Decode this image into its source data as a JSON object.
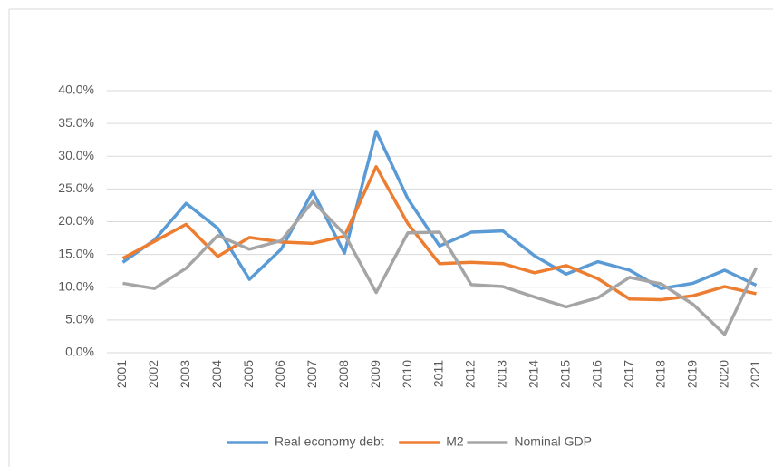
{
  "chart_data": {
    "type": "line",
    "categories": [
      "2001",
      "2002",
      "2003",
      "2004",
      "2005",
      "2006",
      "2007",
      "2008",
      "2009",
      "2010",
      "2011",
      "2012",
      "2013",
      "2014",
      "2015",
      "2016",
      "2017",
      "2018",
      "2019",
      "2020",
      "2021"
    ],
    "series": [
      {
        "name": "Real economy debt",
        "color": "#5b9bd5",
        "values": [
          13.8,
          17.2,
          22.8,
          19.0,
          11.2,
          15.8,
          24.6,
          15.2,
          33.8,
          23.5,
          16.3,
          18.4,
          18.6,
          14.8,
          12.0,
          13.9,
          12.6,
          9.8,
          10.6,
          12.6,
          10.3
        ]
      },
      {
        "name": "M2",
        "color": "#ed7d31",
        "values": [
          14.4,
          17.0,
          19.6,
          14.7,
          17.6,
          16.9,
          16.7,
          17.8,
          28.4,
          19.7,
          13.6,
          13.8,
          13.6,
          12.2,
          13.3,
          11.3,
          8.2,
          8.1,
          8.7,
          10.1,
          9.0
        ]
      },
      {
        "name": "Nominal GDP",
        "color": "#a5a5a5",
        "values": [
          10.6,
          9.8,
          12.9,
          17.9,
          15.8,
          17.1,
          23.1,
          18.1,
          9.2,
          18.3,
          18.4,
          10.4,
          10.1,
          8.5,
          7.0,
          8.4,
          11.5,
          10.5,
          7.4,
          2.8,
          13.0
        ]
      }
    ],
    "ylim": [
      0,
      40
    ],
    "yticks": [
      {
        "value": 0,
        "label": "0.0%"
      },
      {
        "value": 5,
        "label": "5.0%"
      },
      {
        "value": 10,
        "label": "10.0%"
      },
      {
        "value": 15,
        "label": "15.0%"
      },
      {
        "value": 20,
        "label": "20.0%"
      },
      {
        "value": 25,
        "label": "25.0%"
      },
      {
        "value": 30,
        "label": "30.0%"
      },
      {
        "value": 35,
        "label": "35.0%"
      },
      {
        "value": 40,
        "label": "40.0%"
      }
    ],
    "grid": true,
    "legend": "bottom"
  }
}
